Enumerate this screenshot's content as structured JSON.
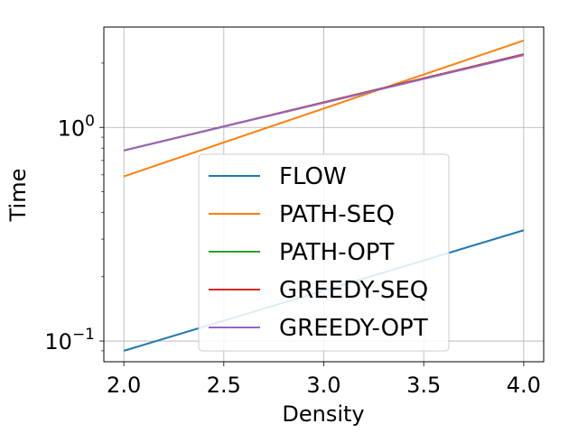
{
  "chart_data": {
    "type": "line",
    "title": "",
    "xlabel": "Density",
    "ylabel": "Time",
    "xscale": "linear",
    "yscale": "log",
    "xlim": [
      1.9,
      4.1
    ],
    "ylim": [
      0.08,
      2.95
    ],
    "grid": true,
    "legend_position": "center-bottom",
    "x_ticks": [
      2.0,
      2.5,
      3.0,
      3.5,
      4.0
    ],
    "x_tick_labels": [
      "2.0",
      "2.5",
      "3.0",
      "3.5",
      "4.0"
    ],
    "y_ticks": [
      0.1,
      1
    ],
    "y_tick_labels": [
      {
        "base": "10",
        "exp": "−1"
      },
      {
        "base": "10",
        "exp": "0"
      }
    ],
    "x": [
      2.0,
      4.0
    ],
    "series": [
      {
        "name": "FLOW",
        "color": "#1f77b4",
        "values": [
          0.09,
          0.33
        ]
      },
      {
        "name": "PATH-SEQ",
        "color": "#ff7f0e",
        "values": [
          0.59,
          2.55
        ]
      },
      {
        "name": "PATH-OPT",
        "color": "#2ca02c",
        "values": [
          0.78,
          2.2
        ]
      },
      {
        "name": "GREEDY-SEQ",
        "color": "#d62728",
        "values": [
          0.78,
          2.2
        ]
      },
      {
        "name": "GREEDY-OPT",
        "color": "#9467bd",
        "values": [
          0.78,
          2.18
        ]
      }
    ]
  }
}
